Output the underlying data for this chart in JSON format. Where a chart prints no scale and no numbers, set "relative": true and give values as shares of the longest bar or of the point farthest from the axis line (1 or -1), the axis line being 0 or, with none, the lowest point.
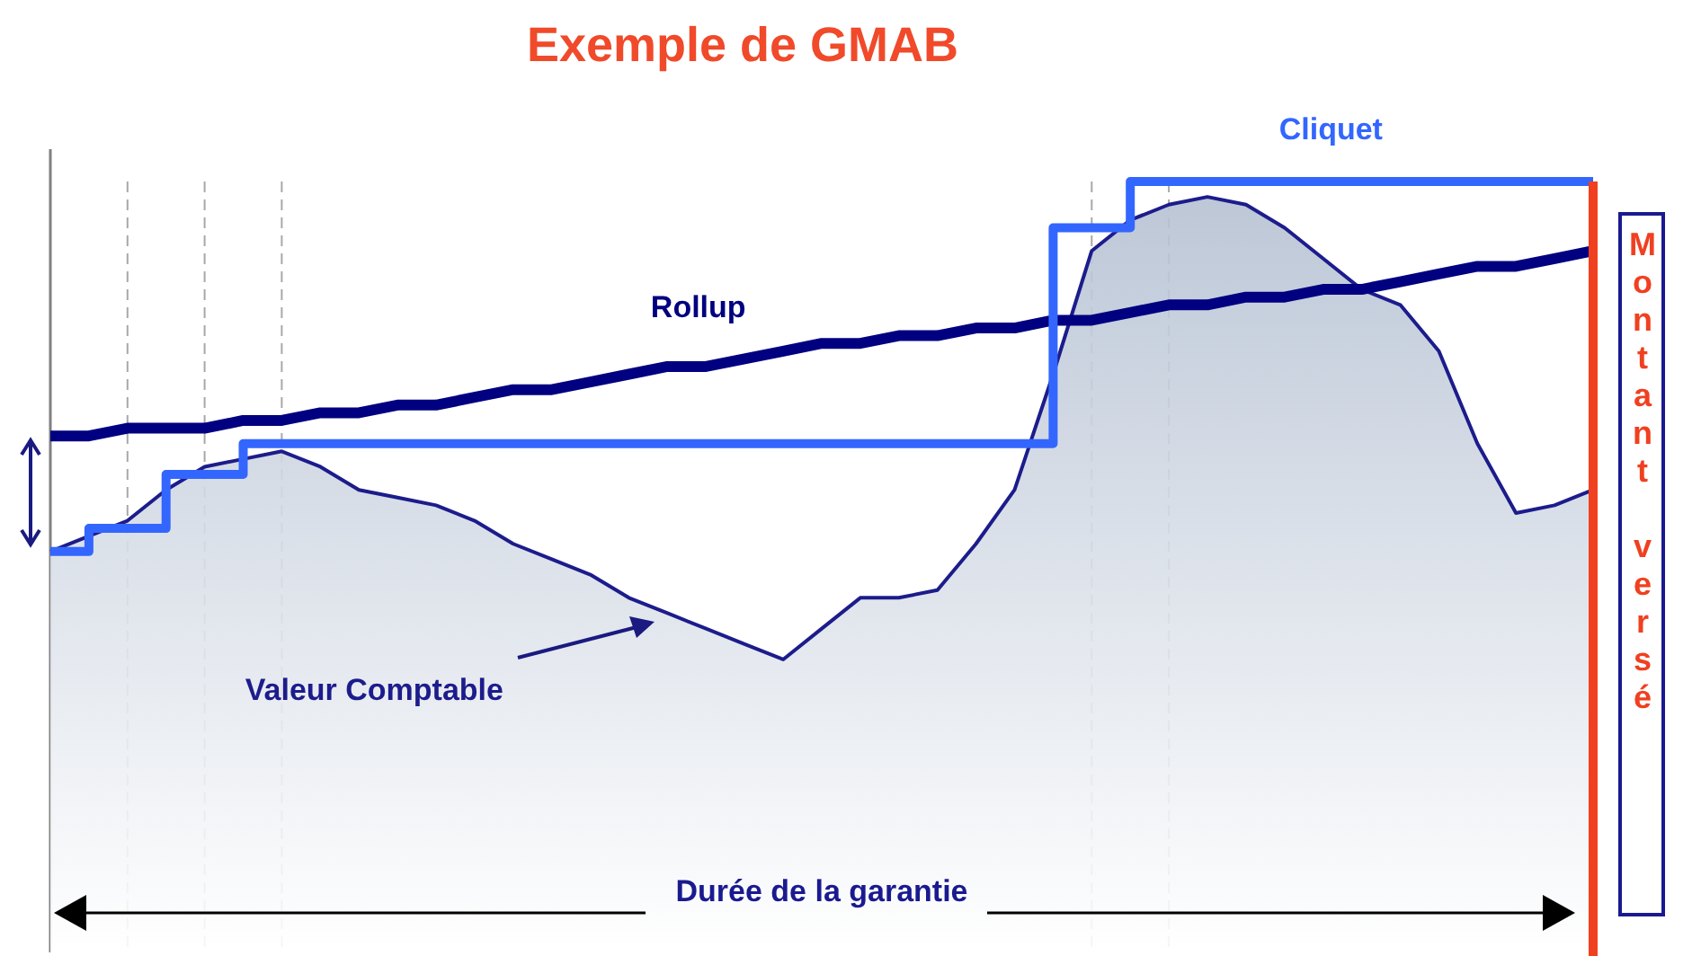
{
  "chart_data": {
    "type": "line",
    "title": "Exemple de GMAB",
    "xlabel": "Durée de la garantie",
    "relative": true,
    "tick_labels": false,
    "legend": false,
    "grid": "x",
    "categories": [
      null,
      null,
      null,
      null,
      null,
      null,
      null,
      null,
      null,
      null,
      null,
      null,
      null,
      null,
      null,
      null,
      null,
      null,
      null,
      null,
      null,
      null,
      null,
      null,
      null,
      null,
      null,
      null,
      null,
      null,
      null,
      null,
      null,
      null,
      null,
      null,
      null,
      null,
      null,
      null,
      null
    ],
    "series": [
      {
        "name": "Valeur Comptable",
        "type": "area",
        "color": "#1c1c8c",
        "values": [
          0.52,
          0.54,
          0.56,
          0.6,
          0.63,
          0.64,
          0.65,
          0.63,
          0.6,
          0.59,
          0.58,
          0.56,
          0.53,
          0.51,
          0.49,
          0.46,
          0.44,
          0.42,
          0.4,
          0.38,
          0.42,
          0.46,
          0.46,
          0.47,
          0.53,
          0.6,
          0.75,
          0.91,
          0.95,
          0.97,
          0.98,
          0.97,
          0.94,
          0.9,
          0.86,
          0.84,
          0.78,
          0.66,
          0.57,
          0.58,
          0.6
        ]
      },
      {
        "name": "Rollup",
        "color": "#000080",
        "values": [
          0.67,
          0.67,
          0.68,
          0.68,
          0.68,
          0.69,
          0.69,
          0.7,
          0.7,
          0.71,
          0.71,
          0.72,
          0.73,
          0.73,
          0.74,
          0.75,
          0.76,
          0.76,
          0.77,
          0.78,
          0.79,
          0.79,
          0.8,
          0.8,
          0.81,
          0.81,
          0.82,
          0.82,
          0.83,
          0.84,
          0.84,
          0.85,
          0.85,
          0.86,
          0.86,
          0.87,
          0.88,
          0.89,
          0.89,
          0.9,
          0.91
        ]
      },
      {
        "name": "Cliquet",
        "type": "step",
        "color": "#3366ff",
        "values": [
          0.52,
          0.52,
          0.55,
          0.55,
          0.62,
          0.62,
          0.66,
          0.66,
          0.66,
          0.66,
          0.66,
          0.66,
          0.66,
          0.66,
          0.66,
          0.66,
          0.66,
          0.66,
          0.66,
          0.66,
          0.66,
          0.66,
          0.66,
          0.66,
          0.66,
          0.66,
          0.66,
          0.94,
          0.94,
          1,
          1,
          1,
          1,
          1,
          1,
          1,
          1,
          1,
          1,
          1,
          1
        ]
      }
    ],
    "annotations": [
      "Montant versé"
    ]
  }
}
